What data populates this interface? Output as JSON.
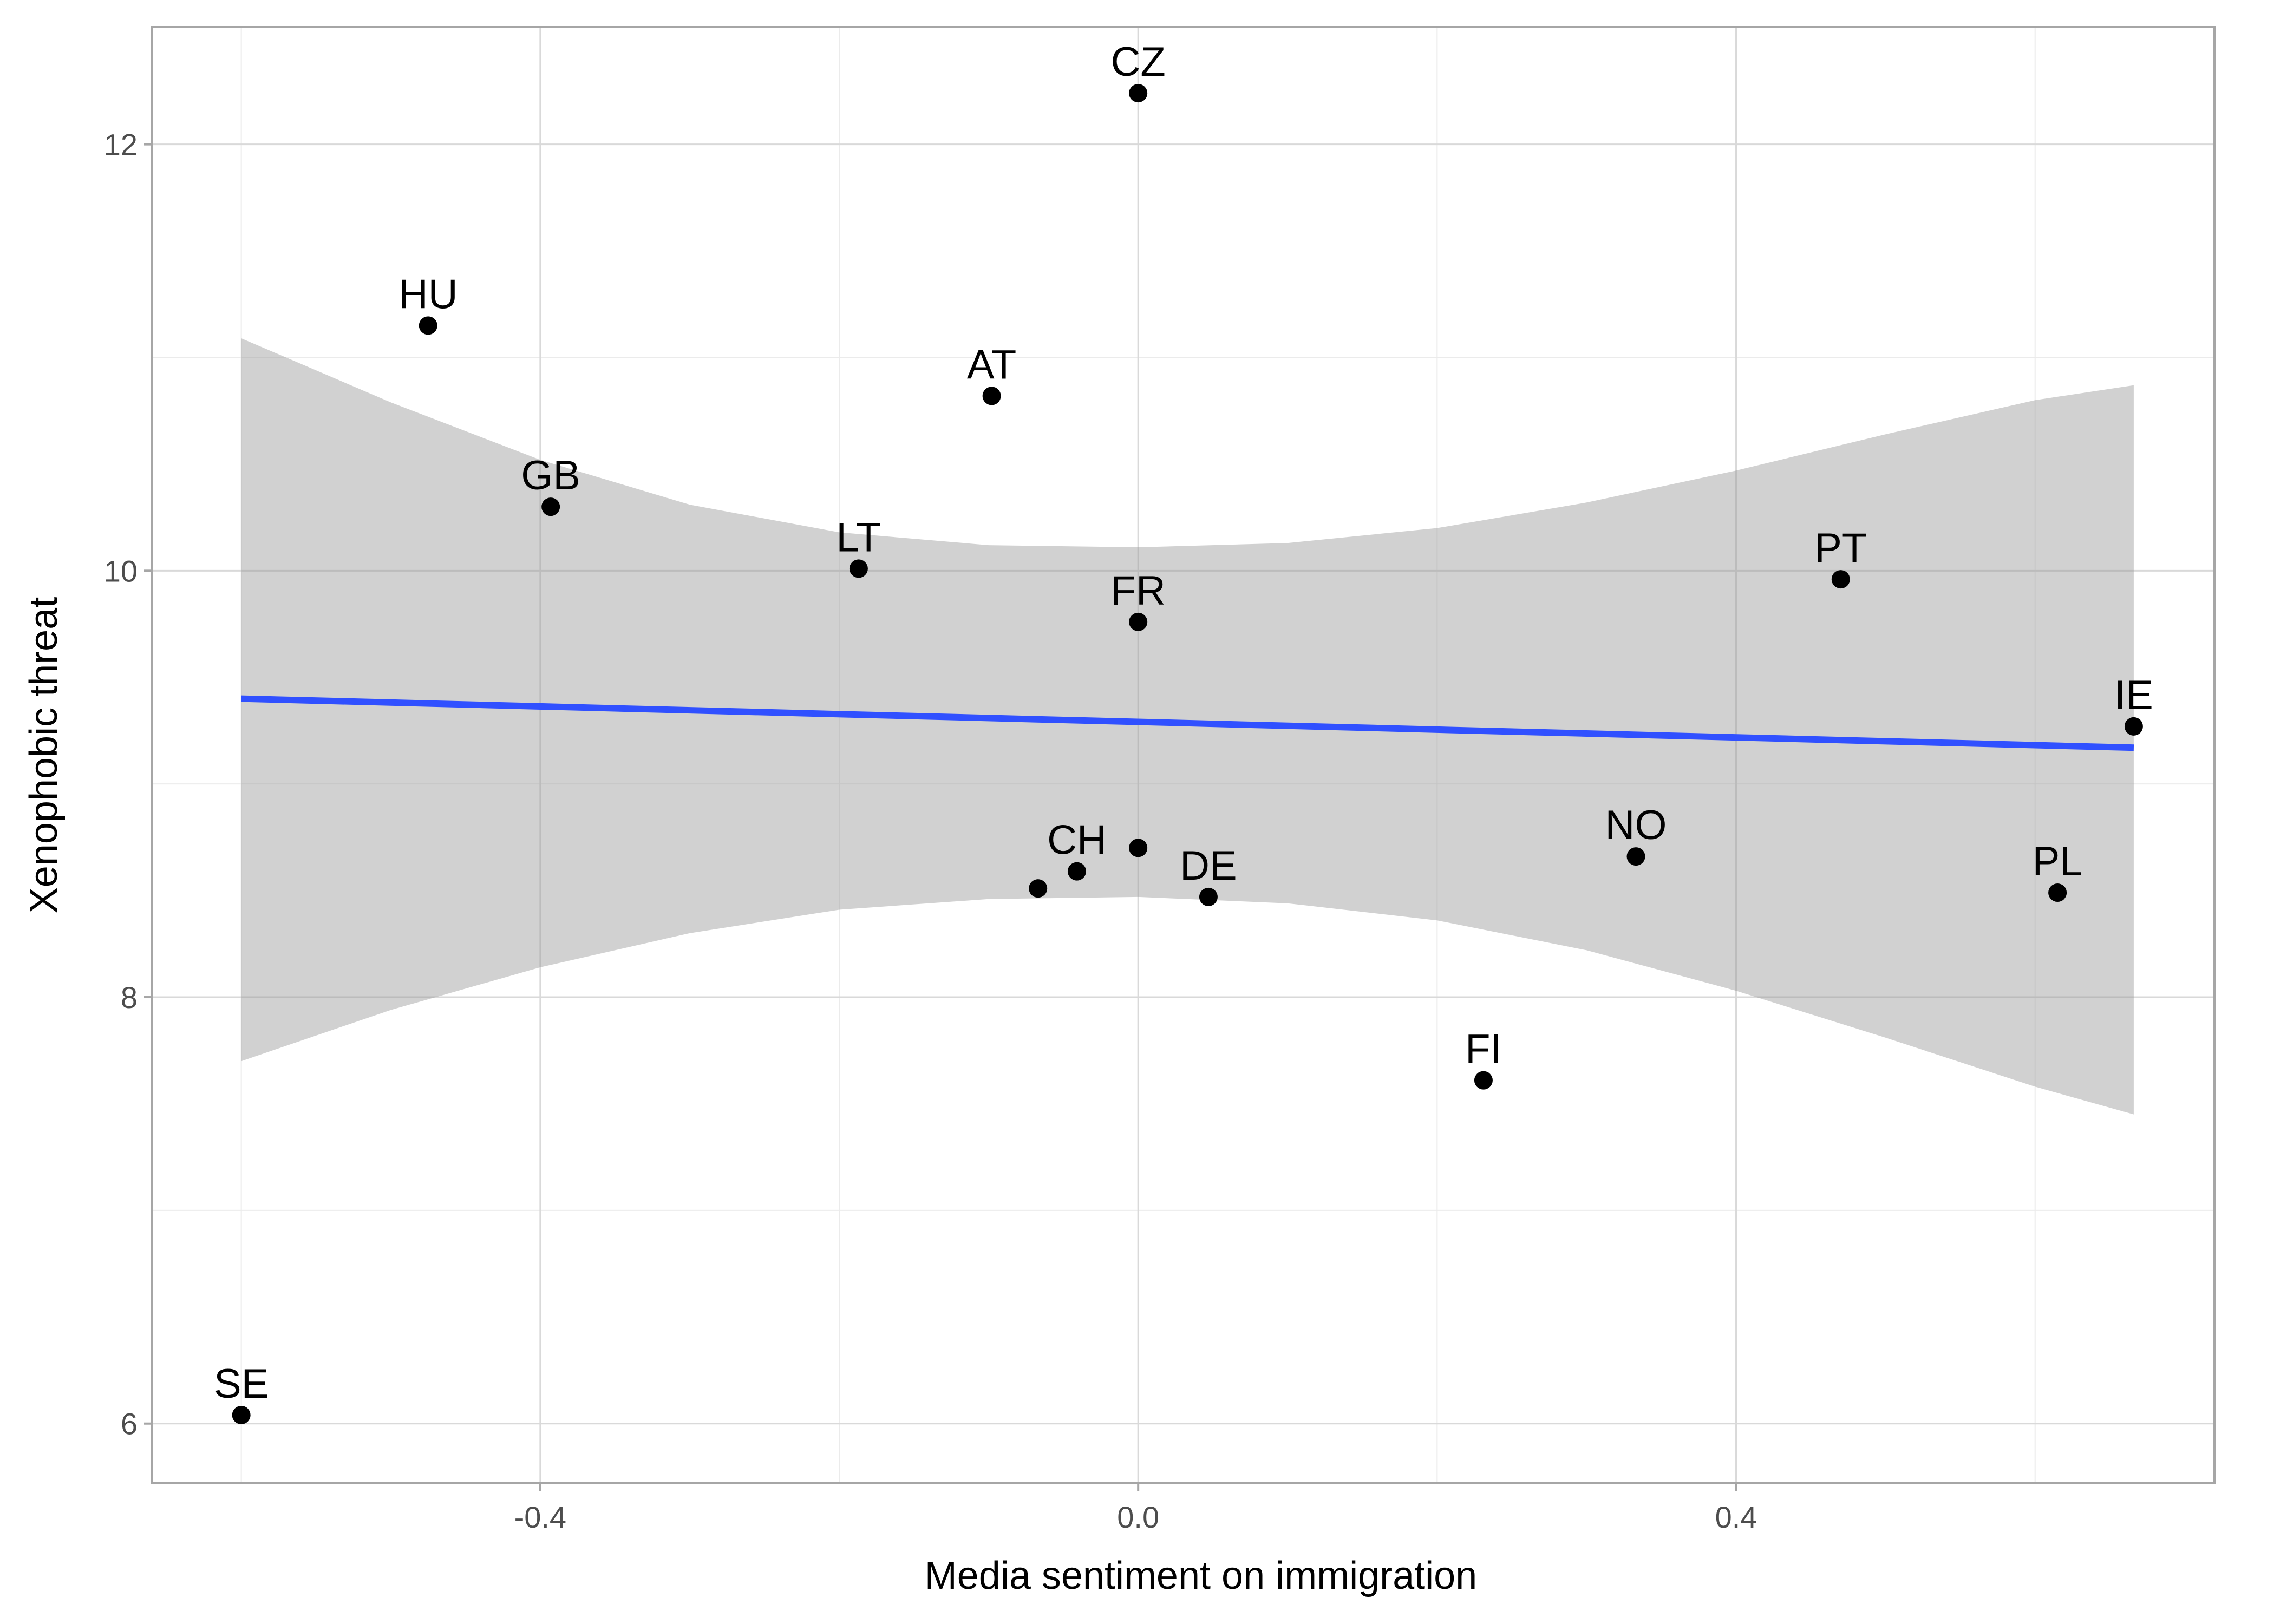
{
  "chart_data": {
    "type": "scatter",
    "title": "",
    "xlabel": "Media sentiment on immigration",
    "ylabel": "Xenophobic threat",
    "xlim": [
      -0.66,
      0.72
    ],
    "ylim": [
      5.72,
      12.55
    ],
    "x_ticks": [
      -0.4,
      0.0,
      0.4
    ],
    "x_tick_labels": [
      "-0.4",
      "0.0",
      "0.4"
    ],
    "y_ticks": [
      6,
      8,
      10,
      12
    ],
    "y_tick_labels": [
      "6",
      "8",
      "10",
      "12"
    ],
    "x_minor_ticks": [
      -0.6,
      -0.2,
      0.2,
      0.6
    ],
    "y_minor_ticks": [
      7,
      9,
      11
    ],
    "grid": true,
    "legend": "none",
    "colors": {
      "point": "#000000",
      "trend_line": "#3050ff",
      "confidence_band": "#999999",
      "grid_major": "#d9d9d9",
      "grid_minor": "#ebebeb"
    },
    "points": [
      {
        "label": "CZ",
        "x": 0.0,
        "y": 12.24
      },
      {
        "label": "HU",
        "x": -0.475,
        "y": 11.15
      },
      {
        "label": "AT",
        "x": -0.098,
        "y": 10.82
      },
      {
        "label": "GB",
        "x": -0.393,
        "y": 10.3
      },
      {
        "label": "LT",
        "x": -0.187,
        "y": 10.01
      },
      {
        "label": "FR",
        "x": 0.0,
        "y": 9.76
      },
      {
        "label": "PT",
        "x": 0.47,
        "y": 9.96
      },
      {
        "label": "IE",
        "x": 0.666,
        "y": 9.27
      },
      {
        "label": "CH",
        "x": -0.041,
        "y": 8.59
      },
      {
        "label": "",
        "x": -0.067,
        "y": 8.51
      },
      {
        "label": "",
        "x": 0.0,
        "y": 8.7
      },
      {
        "label": "DE",
        "x": 0.047,
        "y": 8.47
      },
      {
        "label": "NO",
        "x": 0.333,
        "y": 8.66
      },
      {
        "label": "PL",
        "x": 0.615,
        "y": 8.49
      },
      {
        "label": "FI",
        "x": 0.231,
        "y": 7.61
      },
      {
        "label": "SE",
        "x": -0.6,
        "y": 6.04
      }
    ],
    "trend_line": {
      "x": [
        -0.6,
        0.666
      ],
      "y": [
        9.4,
        9.17
      ]
    },
    "confidence_band": {
      "x": [
        -0.6,
        -0.5,
        -0.4,
        -0.3,
        -0.2,
        -0.1,
        0.0,
        0.1,
        0.2,
        0.3,
        0.4,
        0.5,
        0.6,
        0.666
      ],
      "upper": [
        11.09,
        10.79,
        10.52,
        10.31,
        10.18,
        10.12,
        10.11,
        10.13,
        10.2,
        10.32,
        10.47,
        10.64,
        10.8,
        10.87
      ],
      "lower": [
        7.7,
        7.94,
        8.14,
        8.3,
        8.41,
        8.46,
        8.47,
        8.44,
        8.36,
        8.22,
        8.03,
        7.81,
        7.58,
        7.45
      ]
    }
  }
}
